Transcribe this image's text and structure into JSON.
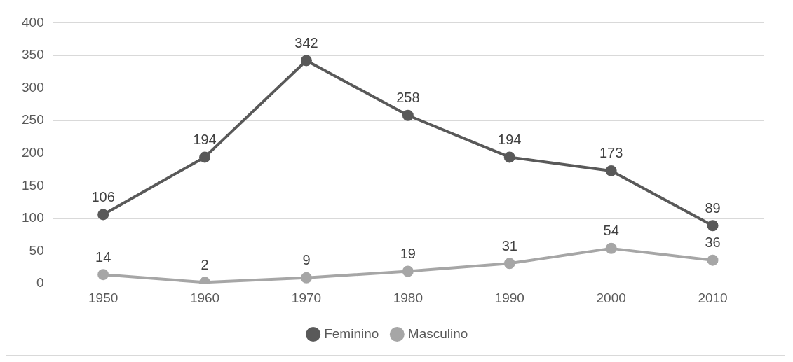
{
  "chart_data": {
    "type": "line",
    "categories": [
      "1950",
      "1960",
      "1970",
      "1980",
      "1990",
      "2000",
      "2010"
    ],
    "series": [
      {
        "name": "Feminino",
        "color": "#595959",
        "values": [
          106,
          194,
          342,
          258,
          194,
          173,
          89
        ]
      },
      {
        "name": "Masculino",
        "color": "#a6a6a6",
        "values": [
          14,
          2,
          9,
          19,
          31,
          54,
          36
        ]
      }
    ],
    "ylim": [
      0,
      400
    ],
    "yticks": [
      0,
      50,
      100,
      150,
      200,
      250,
      300,
      350,
      400
    ],
    "grid": "y",
    "legend": "bottom",
    "marker": "circle",
    "line_style": "solid",
    "data_labels": true
  }
}
